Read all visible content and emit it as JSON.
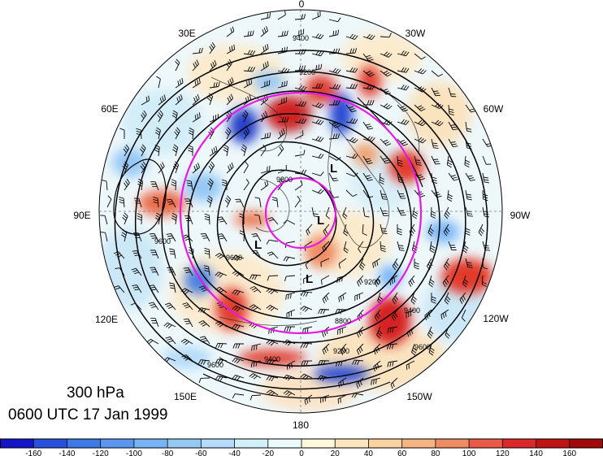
{
  "map": {
    "title_level": "300 hPa",
    "title_time": "0600 UTC 17 Jan 1999",
    "longitude_labels": [
      {
        "text": "0",
        "lon": 0
      },
      {
        "text": "30W",
        "lon": -30
      },
      {
        "text": "60W",
        "lon": -60
      },
      {
        "text": "90W",
        "lon": -90
      },
      {
        "text": "120W",
        "lon": -120
      },
      {
        "text": "150W",
        "lon": -150
      },
      {
        "text": "180",
        "lon": 180
      },
      {
        "text": "150E",
        "lon": 150
      },
      {
        "text": "120E",
        "lon": 120
      },
      {
        "text": "90E",
        "lon": 90
      },
      {
        "text": "60E",
        "lon": 60
      },
      {
        "text": "30E",
        "lon": 30
      }
    ],
    "contour_labels": [
      "9400",
      "9200",
      "9600",
      "9600",
      "9800",
      "9600",
      "9400",
      "9200",
      "8800",
      "9600",
      "9400",
      "9200"
    ],
    "low_markers": [
      "L",
      "L",
      "L",
      "L"
    ],
    "colorbar": {
      "ticks": [
        "-160",
        "-140",
        "-120",
        "-100",
        "-80",
        "-60",
        "-40",
        "-20",
        "0",
        "20",
        "40",
        "60",
        "80",
        "100",
        "120",
        "140",
        "160"
      ],
      "colors": [
        "#1414c8",
        "#2850dc",
        "#3c78e6",
        "#5a96f0",
        "#78b4f5",
        "#96c8f5",
        "#b4dcfa",
        "#d2f0fa",
        "#ebfafa",
        "#fffadc",
        "#fce6be",
        "#fad2a0",
        "#f5b482",
        "#f08c64",
        "#eb5a46",
        "#dc2828",
        "#be1414",
        "#a00a0a"
      ]
    },
    "colors": {
      "ring": "#e619e6",
      "contour": "#000000"
    }
  }
}
